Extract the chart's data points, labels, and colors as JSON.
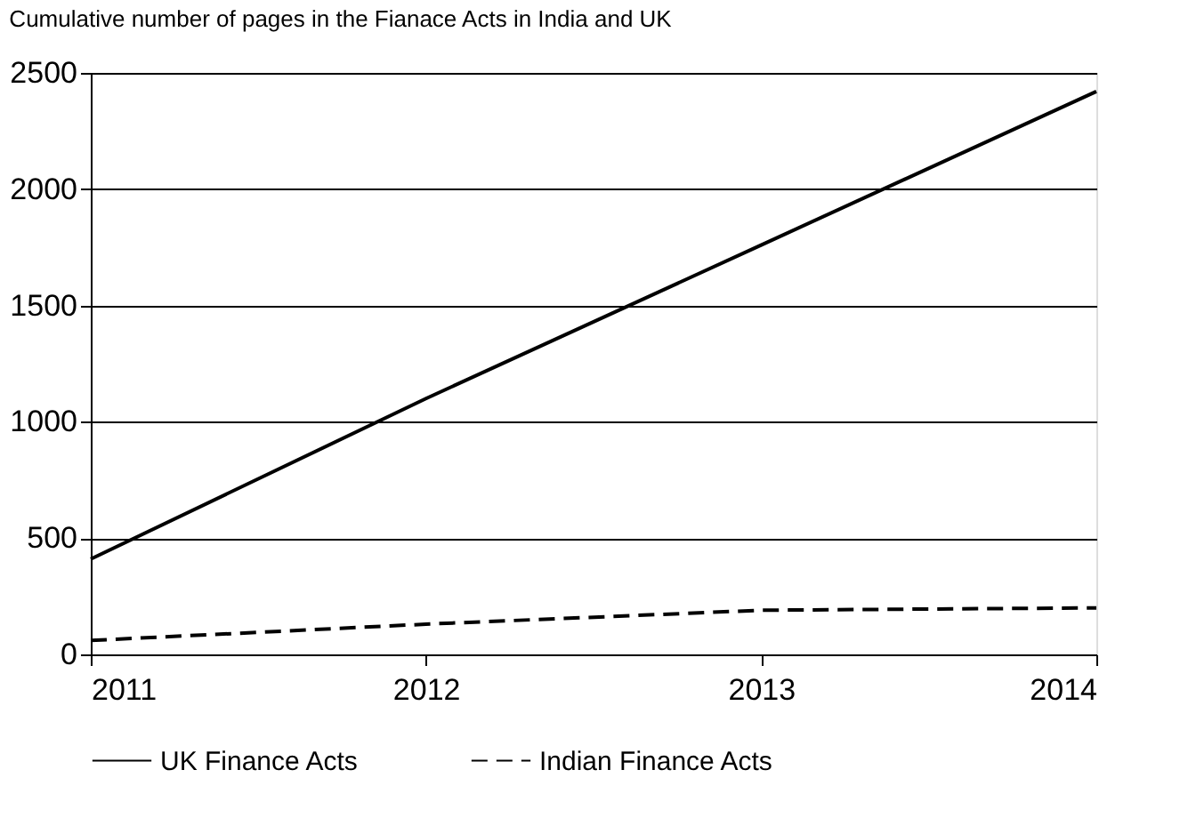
{
  "chart_data": {
    "type": "line",
    "title": "Cumulative number of pages in the Fianace Acts in India and UK",
    "x": [
      2011,
      2012,
      2013,
      2014
    ],
    "series": [
      {
        "name": "UK Finance Acts",
        "color": "#000000",
        "line_style": "solid",
        "values": [
          410,
          1100,
          1760,
          2420
        ]
      },
      {
        "name": "Indian Finance Acts",
        "color": "#000000",
        "line_style": "dashed",
        "values": [
          60,
          130,
          190,
          200
        ]
      }
    ],
    "xlim": [
      2011,
      2014
    ],
    "xticks": [
      2011,
      2012,
      2013,
      2014
    ],
    "ylim": [
      0,
      2500
    ],
    "yticks": [
      0,
      500,
      1000,
      1500,
      2000,
      2500
    ],
    "grid": "y",
    "legend": "bottom",
    "marker": "none"
  }
}
